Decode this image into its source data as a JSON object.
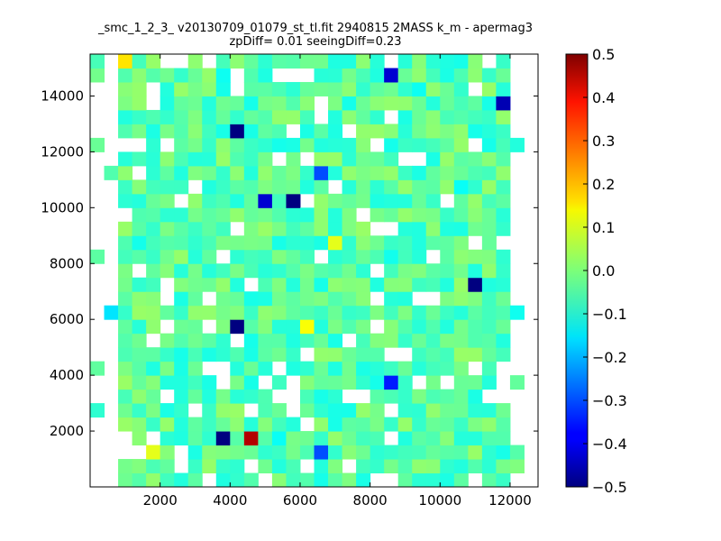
{
  "chart_data": {
    "type": "heatmap",
    "title": "_smc_1_2_3_ v20130709_01079_st_tl.fit 2940815 2MASS k_m - apermag3",
    "subtitle": "zpDiff= 0.01 seeingDiff=0.23",
    "xlabel": "",
    "ylabel": "",
    "xlim": [
      0,
      12800
    ],
    "ylim": [
      0,
      15500
    ],
    "x_ticks": [
      2000,
      4000,
      6000,
      8000,
      10000,
      12000
    ],
    "y_ticks": [
      2000,
      4000,
      6000,
      8000,
      10000,
      12000,
      14000
    ],
    "colormap": "jet",
    "colorbar": {
      "vmin": -0.5,
      "vmax": 0.5,
      "ticks": [
        "0.5",
        "0.4",
        "0.3",
        "0.2",
        "0.1",
        "0.0",
        "−0.1",
        "−0.2",
        "−0.3",
        "−0.4",
        "−0.5"
      ]
    },
    "grid": false,
    "cells": {
      "x_start": 0,
      "y_start": 0,
      "dx": 400,
      "dy": 500,
      "cols": 32,
      "rows": 31,
      "notable_values": [
        {
          "x": 4600,
          "y": 1750,
          "v": 0.45
        },
        {
          "x": 3800,
          "y": 1750,
          "v": -0.5
        },
        {
          "x": 4200,
          "y": 5750,
          "v": -0.5
        },
        {
          "x": 4200,
          "y": 12750,
          "v": -0.5
        },
        {
          "x": 5800,
          "y": 10250,
          "v": -0.5
        },
        {
          "x": 11000,
          "y": 7250,
          "v": -0.5
        },
        {
          "x": 11600,
          "y": 13750,
          "v": -0.45
        },
        {
          "x": 8600,
          "y": 14750,
          "v": -0.42
        },
        {
          "x": 5000,
          "y": 10250,
          "v": -0.42
        },
        {
          "x": 8600,
          "y": 3750,
          "v": -0.35
        },
        {
          "x": 6600,
          "y": 11250,
          "v": -0.3
        },
        {
          "x": 6600,
          "y": 1250,
          "v": -0.3
        },
        {
          "x": 600,
          "y": 6250,
          "v": -0.15
        },
        {
          "x": 6200,
          "y": 5750,
          "v": 0.12
        },
        {
          "x": 7000,
          "y": 8750,
          "v": 0.1
        },
        {
          "x": 1000,
          "y": 15250,
          "v": 0.15
        },
        {
          "x": 1600,
          "y": 1250,
          "v": 0.1
        }
      ]
    }
  }
}
